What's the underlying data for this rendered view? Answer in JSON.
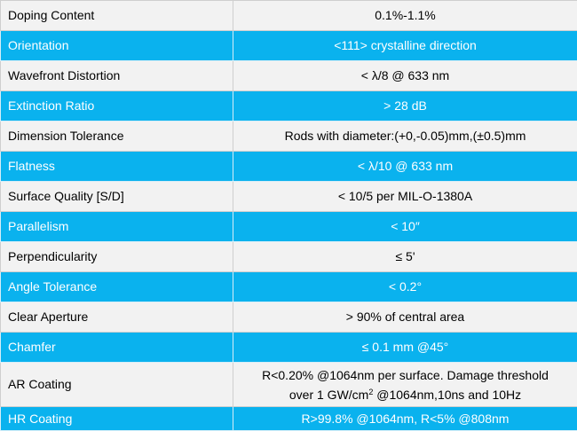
{
  "colors": {
    "light_row": "#f2f2f2",
    "blue_row": "#0ab2ee",
    "blue_text": "#ffffff",
    "light_text": "#000000"
  },
  "rows": [
    {
      "label": "Doping Content",
      "value": "0.1%-1.1%"
    },
    {
      "label": "Orientation",
      "value": "<111> crystalline direction"
    },
    {
      "label": "Wavefront Distortion",
      "value": "< λ/8 @ 633 nm"
    },
    {
      "label": "Extinction Ratio",
      "value": "> 28 dB"
    },
    {
      "label": "Dimension Tolerance",
      "value": "Rods with diameter:(+0,-0.05)mm,(±0.5)mm"
    },
    {
      "label": "Flatness",
      "value": "< λ/10 @ 633 nm"
    },
    {
      "label": "Surface Quality [S/D]",
      "value": "< 10/5 per MIL-O-1380A"
    },
    {
      "label": "Parallelism",
      "value": "< 10″"
    },
    {
      "label": "Perpendicularity",
      "value": "≤ 5'"
    },
    {
      "label": "Angle Tolerance",
      "value": "< 0.2°"
    },
    {
      "label": "Clear Aperture",
      "value": "> 90% of central area"
    },
    {
      "label": "Chamfer",
      "value": "≤ 0.1 mm @45°"
    },
    {
      "label": "AR Coating",
      "value_line1": "R<0.20% @1064nm per surface. Damage threshold",
      "value_line2_a": "over 1 GW/cm",
      "value_line2_sup": "2",
      "value_line2_b": " @1064nm,10ns and 10Hz"
    },
    {
      "label": "HR Coating",
      "value": "R>99.8% @1064nm, R<5% @808nm"
    }
  ]
}
